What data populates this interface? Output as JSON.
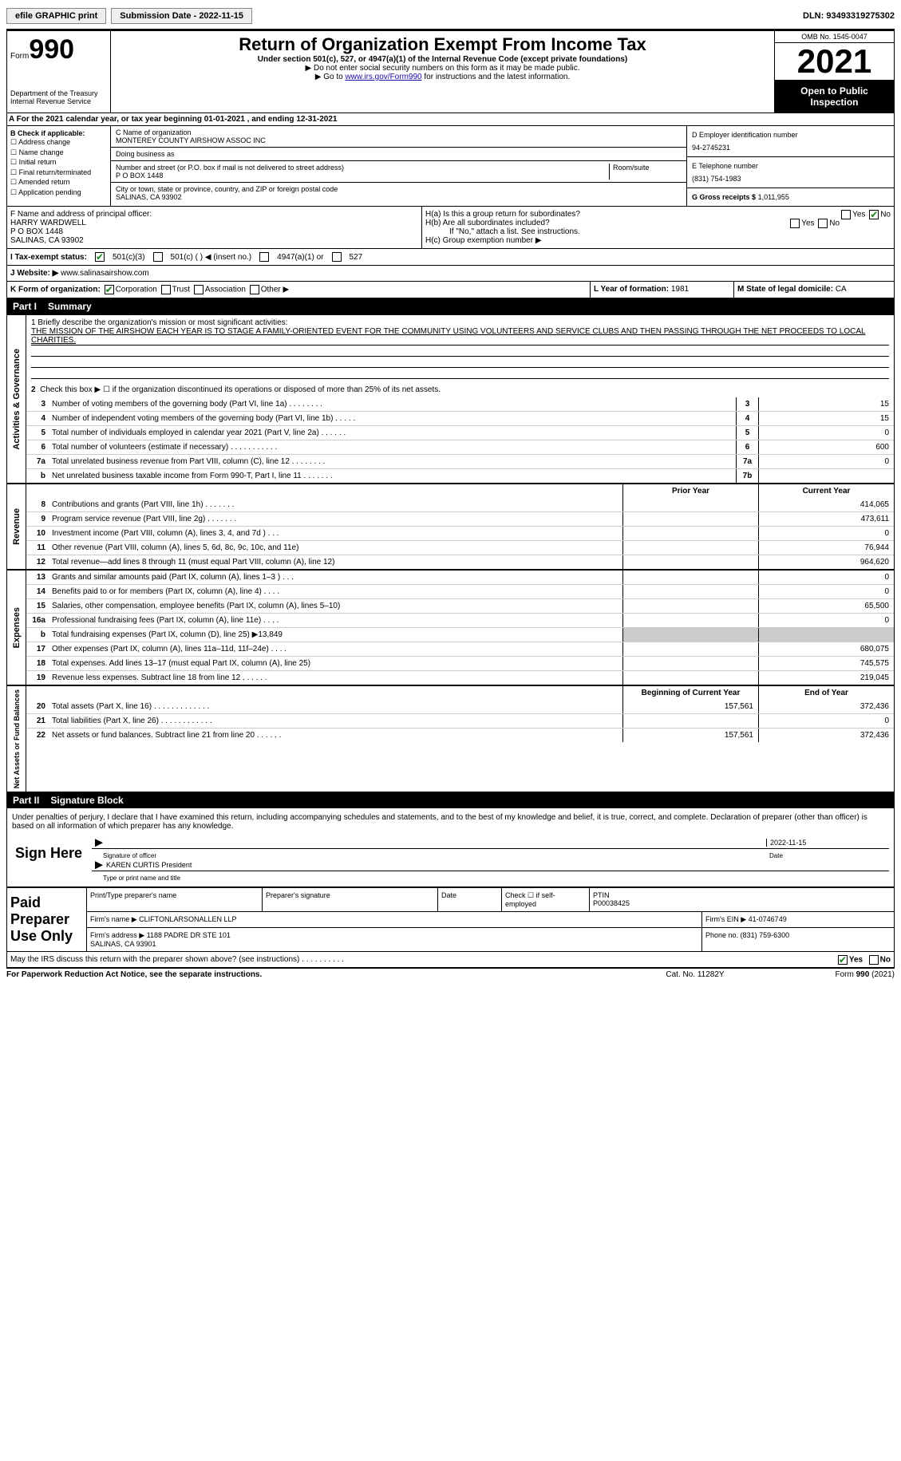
{
  "toolbar": {
    "efile": "efile GRAPHIC print",
    "submission": "Submission Date - 2022-11-15",
    "dln_label": "DLN:",
    "dln": "93493319275302"
  },
  "header": {
    "form_label": "Form",
    "form_no": "990",
    "title": "Return of Organization Exempt From Income Tax",
    "subtitle": "Under section 501(c), 527, or 4947(a)(1) of the Internal Revenue Code (except private foundations)",
    "note1": "▶ Do not enter social security numbers on this form as it may be made public.",
    "note2_pre": "▶ Go to ",
    "note2_link": "www.irs.gov/Form990",
    "note2_post": " for instructions and the latest information.",
    "dept": "Department of the Treasury\nInternal Revenue Service",
    "omb": "OMB No. 1545-0047",
    "year": "2021",
    "pubinsp": "Open to Public Inspection"
  },
  "A": {
    "text": "A For the 2021 calendar year, or tax year beginning 01-01-2021   , and ending 12-31-2021"
  },
  "B": {
    "label": "B Check if applicable:",
    "opts": [
      "Address change",
      "Name change",
      "Initial return",
      "Final return/terminated",
      "Amended return",
      "Application pending"
    ]
  },
  "C": {
    "name_label": "C Name of organization",
    "name": "MONTEREY COUNTY AIRSHOW ASSOC INC",
    "dba_label": "Doing business as",
    "dba": "",
    "street_label": "Number and street (or P.O. box if mail is not delivered to street address)",
    "room_label": "Room/suite",
    "street": "P O BOX 1448",
    "city_label": "City or town, state or province, country, and ZIP or foreign postal code",
    "city": "SALINAS, CA  93902"
  },
  "D": {
    "label": "D Employer identification number",
    "val": "94-2745231"
  },
  "E": {
    "label": "E Telephone number",
    "val": "(831) 754-1983"
  },
  "G": {
    "label": "G Gross receipts $",
    "val": "1,011,955"
  },
  "F": {
    "label": "F  Name and address of principal officer:",
    "name": "HARRY WARDWELL",
    "street": "P O BOX 1448",
    "city": "SALINAS, CA  93902"
  },
  "H": {
    "a": "H(a)  Is this a group return for subordinates?",
    "a_yes": "Yes",
    "a_no": "No",
    "a_checked": "no",
    "b": "H(b)  Are all subordinates included?",
    "b_note": "If \"No,\" attach a list. See instructions.",
    "c": "H(c)  Group exemption number ▶"
  },
  "I": {
    "label": "I  Tax-exempt status:",
    "c3": "501(c)(3)",
    "c": "501(c) (  ) ◀ (insert no.)",
    "a47": "4947(a)(1) or",
    "s527": "527"
  },
  "J": {
    "label": "J  Website: ▶",
    "val": "www.salinasairshow.com"
  },
  "K": {
    "label": "K Form of organization:",
    "corp": "Corporation",
    "trust": "Trust",
    "assoc": "Association",
    "other": "Other ▶"
  },
  "L": {
    "label": "L Year of formation:",
    "val": "1981"
  },
  "M": {
    "label": "M State of legal domicile:",
    "val": "CA"
  },
  "part1": {
    "num": "Part I",
    "title": "Summary"
  },
  "mission": {
    "q": "1  Briefly describe the organization's mission or most significant activities:",
    "text": "THE MISSION OF THE AIRSHOW EACH YEAR IS TO STAGE A FAMILY-ORIENTED EVENT FOR THE COMMUNITY USING VOLUNTEERS AND SERVICE CLUBS AND THEN PASSING THROUGH THE NET PROCEEDS TO LOCAL CHARITIES.",
    "check2": "Check this box ▶ ☐ if the organization discontinued its operations or disposed of more than 25% of its net assets."
  },
  "gov_lines": [
    {
      "n": "3",
      "lbl": "Number of voting members of the governing body (Part VI, line 1a)  .    .    .    .    .    .    .    .",
      "box": "3",
      "val": "15"
    },
    {
      "n": "4",
      "lbl": "Number of independent voting members of the governing body (Part VI, line 1b)   .    .    .    .    .",
      "box": "4",
      "val": "15"
    },
    {
      "n": "5",
      "lbl": "Total number of individuals employed in calendar year 2021 (Part V, line 2a)   .    .    .    .    .    .",
      "box": "5",
      "val": "0"
    },
    {
      "n": "6",
      "lbl": "Total number of volunteers (estimate if necessary)    .    .    .    .    .    .    .    .    .    .    .",
      "box": "6",
      "val": "600"
    },
    {
      "n": "7a",
      "lbl": "Total unrelated business revenue from Part VIII, column (C), line 12   .    .    .    .    .    .    .    .",
      "box": "7a",
      "val": "0"
    },
    {
      "n": "b",
      "lbl": "Net unrelated business taxable income from Form 990-T, Part I, line 11   .    .    .    .    .    .    .",
      "box": "7b",
      "val": ""
    }
  ],
  "rev_hdr": {
    "py": "Prior Year",
    "cy": "Current Year"
  },
  "rev_lines": [
    {
      "n": "8",
      "lbl": "Contributions and grants (Part VIII, line 1h)   .    .    .    .    .    .    .",
      "py": "",
      "val": "414,065"
    },
    {
      "n": "9",
      "lbl": "Program service revenue (Part VIII, line 2g)   .    .    .    .    .    .    .",
      "py": "",
      "val": "473,611"
    },
    {
      "n": "10",
      "lbl": "Investment income (Part VIII, column (A), lines 3, 4, and 7d )   .    .    .",
      "py": "",
      "val": "0"
    },
    {
      "n": "11",
      "lbl": "Other revenue (Part VIII, column (A), lines 5, 6d, 8c, 9c, 10c, and 11e)",
      "py": "",
      "val": "76,944"
    },
    {
      "n": "12",
      "lbl": "Total revenue—add lines 8 through 11 (must equal Part VIII, column (A), line 12)",
      "py": "",
      "val": "964,620"
    }
  ],
  "exp_lines": [
    {
      "n": "13",
      "lbl": "Grants and similar amounts paid (Part IX, column (A), lines 1–3 )   .    .    .",
      "py": "",
      "val": "0"
    },
    {
      "n": "14",
      "lbl": "Benefits paid to or for members (Part IX, column (A), line 4)   .    .    .    .",
      "py": "",
      "val": "0"
    },
    {
      "n": "15",
      "lbl": "Salaries, other compensation, employee benefits (Part IX, column (A), lines 5–10)",
      "py": "",
      "val": "65,500"
    },
    {
      "n": "16a",
      "lbl": "Professional fundraising fees (Part IX, column (A), line 11e)   .    .    .    .",
      "py": "",
      "val": "0"
    },
    {
      "n": "b",
      "lbl": "Total fundraising expenses (Part IX, column (D), line 25) ▶13,849",
      "py": "shade",
      "val": "shade"
    },
    {
      "n": "17",
      "lbl": "Other expenses (Part IX, column (A), lines 11a–11d, 11f–24e)   .    .    .    .",
      "py": "",
      "val": "680,075"
    },
    {
      "n": "18",
      "lbl": "Total expenses. Add lines 13–17 (must equal Part IX, column (A), line 25)",
      "py": "",
      "val": "745,575"
    },
    {
      "n": "19",
      "lbl": "Revenue less expenses. Subtract line 18 from line 12   .    .    .    .    .    .",
      "py": "",
      "val": "219,045"
    }
  ],
  "na_hdr": {
    "py": "Beginning of Current Year",
    "cy": "End of Year"
  },
  "na_lines": [
    {
      "n": "20",
      "lbl": "Total assets (Part X, line 16)  .    .    .    .    .    .    .    .    .    .    .    .    .",
      "py": "157,561",
      "val": "372,436"
    },
    {
      "n": "21",
      "lbl": "Total liabilities (Part X, line 26)  .    .    .    .    .    .    .    .    .    .    .    .",
      "py": "",
      "val": "0"
    },
    {
      "n": "22",
      "lbl": "Net assets or fund balances. Subtract line 21 from line 20   .    .    .    .    .    .",
      "py": "157,561",
      "val": "372,436"
    }
  ],
  "side_labels": {
    "gov": "Activities & Governance",
    "rev": "Revenue",
    "exp": "Expenses",
    "na": "Net Assets or Fund Balances"
  },
  "part2": {
    "num": "Part II",
    "title": "Signature Block"
  },
  "sig": {
    "pen": "Under penalties of perjury, I declare that I have examined this return, including accompanying schedules and statements, and to the best of my knowledge and belief, it is true, correct, and complete. Declaration of preparer (other than officer) is based on all information of which preparer has any knowledge.",
    "sign_here": "Sign Here",
    "sig_officer": "Signature of officer",
    "date": "Date",
    "sig_date": "2022-11-15",
    "name": "KAREN CURTIS President",
    "name_lbl": "Type or print name and title"
  },
  "paid": {
    "label": "Paid Preparer Use Only",
    "prep_name_lbl": "Print/Type preparer's name",
    "prep_name": "",
    "prep_sig_lbl": "Preparer's signature",
    "date_lbl": "Date",
    "check_lbl": "Check ☐ if self-employed",
    "ptin_lbl": "PTIN",
    "ptin": "P00038425",
    "firm_name_lbl": "Firm's name    ▶",
    "firm_name": "CLIFTONLARSONALLEN LLP",
    "firm_ein_lbl": "Firm's EIN ▶",
    "firm_ein": "41-0746749",
    "firm_addr_lbl": "Firm's address ▶",
    "firm_addr": "1188 PADRE DR STE 101\nSALINAS, CA  93901",
    "phone_lbl": "Phone no.",
    "phone": "(831) 759-6300"
  },
  "discuss": {
    "q": "May the IRS discuss this return with the preparer shown above? (see instructions)   .    .    .    .    .    .    .    .    .    .",
    "yes": "Yes",
    "no": "No",
    "checked": "yes"
  },
  "footer": {
    "l": "For Paperwork Reduction Act Notice, see the separate instructions.",
    "c": "Cat. No. 11282Y",
    "r": "Form 990 (2021)"
  },
  "colors": {
    "link": "#1a0dab",
    "black": "#000000",
    "shade": "#cccccc",
    "check_green": "#1a7f1a"
  }
}
